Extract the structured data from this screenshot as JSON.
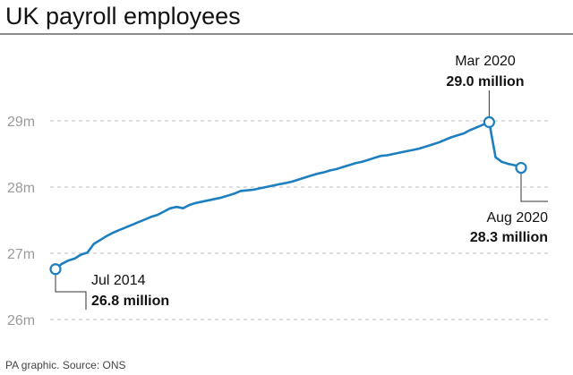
{
  "title": "UK payroll employees",
  "source": "PA graphic. Source: ONS",
  "colors": {
    "line": "#1d7fbf",
    "grid": "#bdbdbd",
    "tick_text": "#9a9a9a",
    "text": "#111111"
  },
  "annotations": [
    {
      "date": "Jul 2014",
      "value": "26.8 million"
    },
    {
      "date": "Mar 2020",
      "value": "29.0 million"
    },
    {
      "date": "Aug 2020",
      "value": "28.3 million"
    }
  ],
  "chart_data": {
    "type": "line",
    "title": "UK payroll employees",
    "xlabel": "",
    "ylabel": "",
    "ylim": [
      26,
      29.5
    ],
    "yticks": [
      26,
      27,
      28,
      29
    ],
    "ytick_labels": [
      "26m",
      "27m",
      "28m",
      "29m"
    ],
    "grid": true,
    "series": [
      {
        "x": [
          "2014-07",
          "2014-08",
          "2014-09",
          "2014-10",
          "2014-11",
          "2014-12",
          "2015-01",
          "2015-02",
          "2015-03",
          "2015-04",
          "2015-05",
          "2015-06",
          "2015-07",
          "2015-08",
          "2015-09",
          "2015-10",
          "2015-11",
          "2015-12",
          "2016-01",
          "2016-02",
          "2016-03",
          "2016-04",
          "2016-05",
          "2016-06",
          "2016-07",
          "2016-08",
          "2016-09",
          "2016-10",
          "2016-11",
          "2016-12",
          "2017-01",
          "2017-02",
          "2017-03",
          "2017-04",
          "2017-05",
          "2017-06",
          "2017-07",
          "2017-08",
          "2017-09",
          "2017-10",
          "2017-11",
          "2017-12",
          "2018-01",
          "2018-02",
          "2018-03",
          "2018-04",
          "2018-05",
          "2018-06",
          "2018-07",
          "2018-08",
          "2018-09",
          "2018-10",
          "2018-11",
          "2018-12",
          "2019-01",
          "2019-02",
          "2019-03",
          "2019-04",
          "2019-05",
          "2019-06",
          "2019-07",
          "2019-08",
          "2019-09",
          "2019-10",
          "2019-11",
          "2019-12",
          "2020-01",
          "2020-02",
          "2020-03",
          "2020-04",
          "2020-05",
          "2020-06",
          "2020-07",
          "2020-08"
        ],
        "values": [
          26.76,
          26.84,
          26.89,
          26.92,
          26.98,
          27.01,
          27.14,
          27.2,
          27.26,
          27.31,
          27.35,
          27.39,
          27.43,
          27.47,
          27.51,
          27.55,
          27.58,
          27.63,
          27.68,
          27.7,
          27.68,
          27.73,
          27.76,
          27.78,
          27.8,
          27.82,
          27.84,
          27.87,
          27.9,
          27.94,
          27.95,
          27.96,
          27.98,
          28.0,
          28.02,
          28.04,
          28.06,
          28.08,
          28.11,
          28.14,
          28.17,
          28.2,
          28.22,
          28.25,
          28.27,
          28.3,
          28.33,
          28.36,
          28.38,
          28.41,
          28.44,
          28.47,
          28.48,
          28.5,
          28.52,
          28.54,
          28.56,
          28.58,
          28.61,
          28.64,
          28.67,
          28.71,
          28.75,
          28.78,
          28.81,
          28.86,
          28.9,
          28.94,
          28.98,
          28.45,
          28.38,
          28.35,
          28.33,
          28.29
        ]
      }
    ],
    "highlights": [
      {
        "x": "2014-07",
        "y": 26.76
      },
      {
        "x": "2020-03",
        "y": 28.98
      },
      {
        "x": "2020-08",
        "y": 28.29
      }
    ]
  }
}
